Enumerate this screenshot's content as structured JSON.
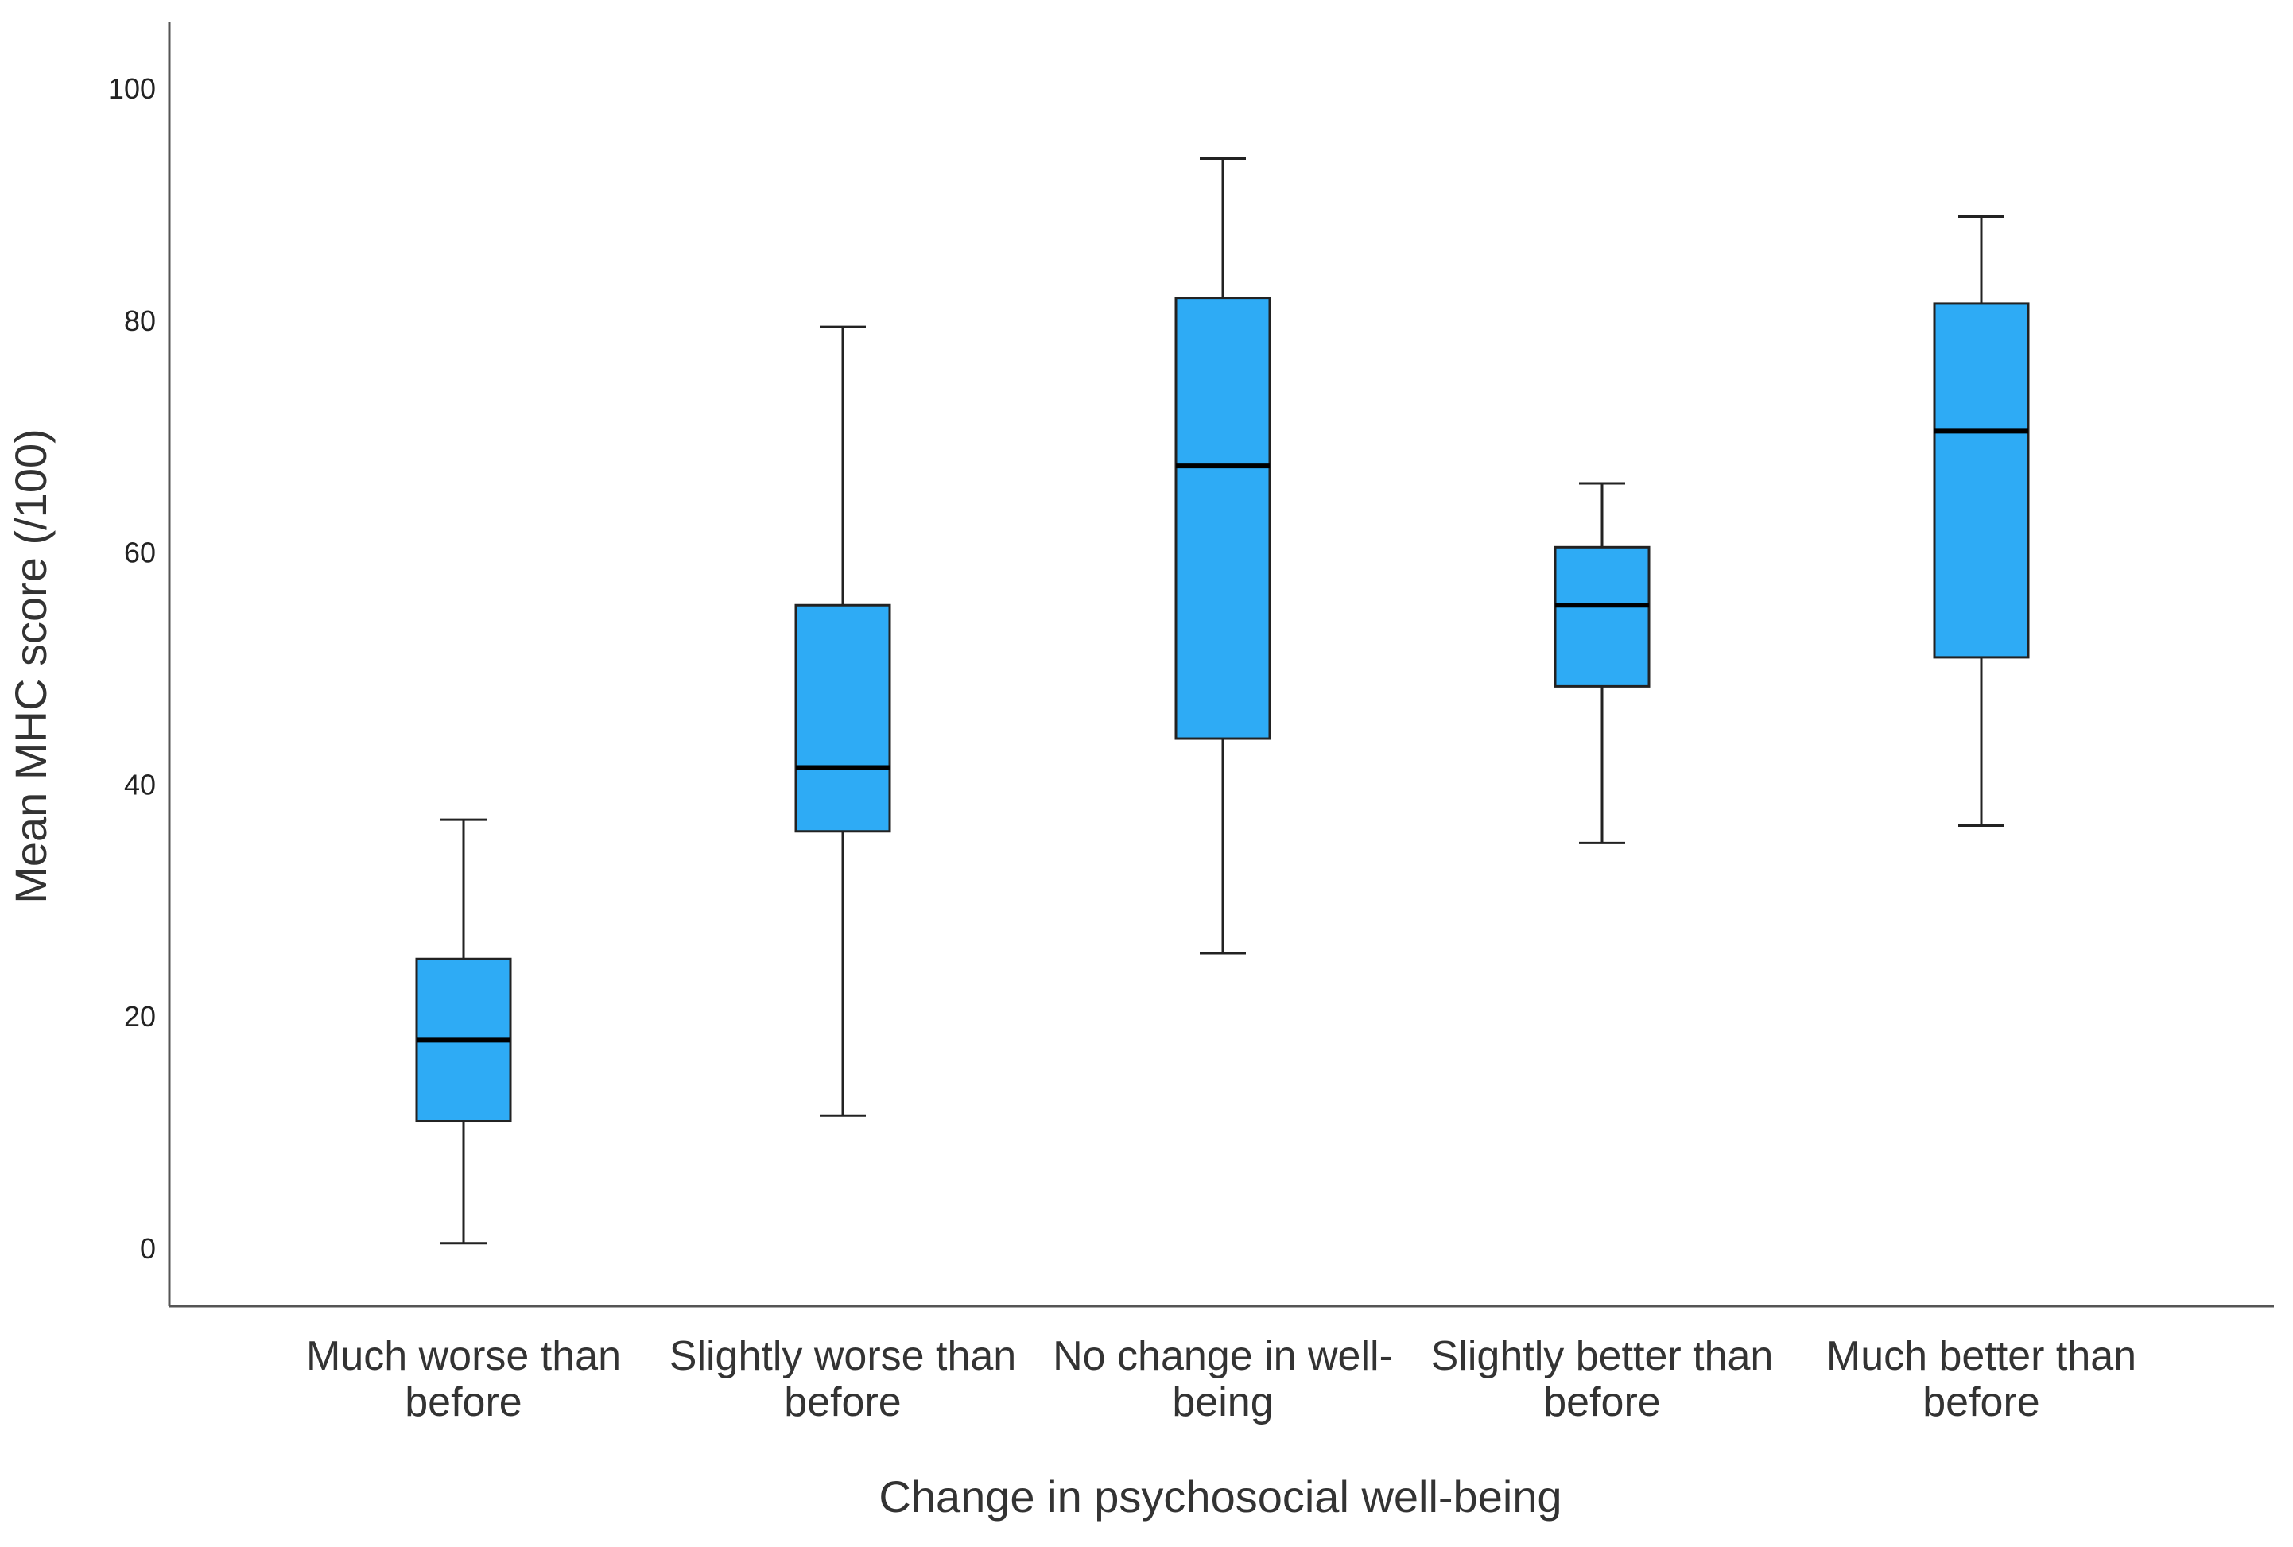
{
  "chart_data": {
    "type": "boxplot",
    "title": "",
    "xlabel": "Change in psychosocial well-being",
    "ylabel": "Mean MHC score (/100)",
    "ylim": [
      -5,
      106
    ],
    "yticks": [
      0,
      20,
      40,
      60,
      80,
      100
    ],
    "grid": false,
    "legend": "none",
    "colors": {
      "box_fill": "#2eabf5",
      "stroke": "#222222",
      "median": "#000000",
      "axis": "#555555"
    },
    "categories": [
      {
        "lines": [
          "Much worse than",
          "before"
        ],
        "min": 0.5,
        "q1": 11,
        "median": 18,
        "q3": 25,
        "max": 37
      },
      {
        "lines": [
          "Slightly worse than",
          "before"
        ],
        "min": 11.5,
        "q1": 36,
        "median": 41.5,
        "q3": 55.5,
        "max": 79.5
      },
      {
        "lines": [
          "No change in well-",
          "being"
        ],
        "min": 25.5,
        "q1": 44,
        "median": 67.5,
        "q3": 82,
        "max": 94
      },
      {
        "lines": [
          "Slightly better than",
          "before"
        ],
        "min": 35,
        "q1": 48.5,
        "median": 55.5,
        "q3": 60.5,
        "max": 66
      },
      {
        "lines": [
          "Much better than",
          "before"
        ],
        "min": 36.5,
        "q1": 51,
        "median": 70.5,
        "q3": 81.5,
        "max": 89
      }
    ]
  }
}
